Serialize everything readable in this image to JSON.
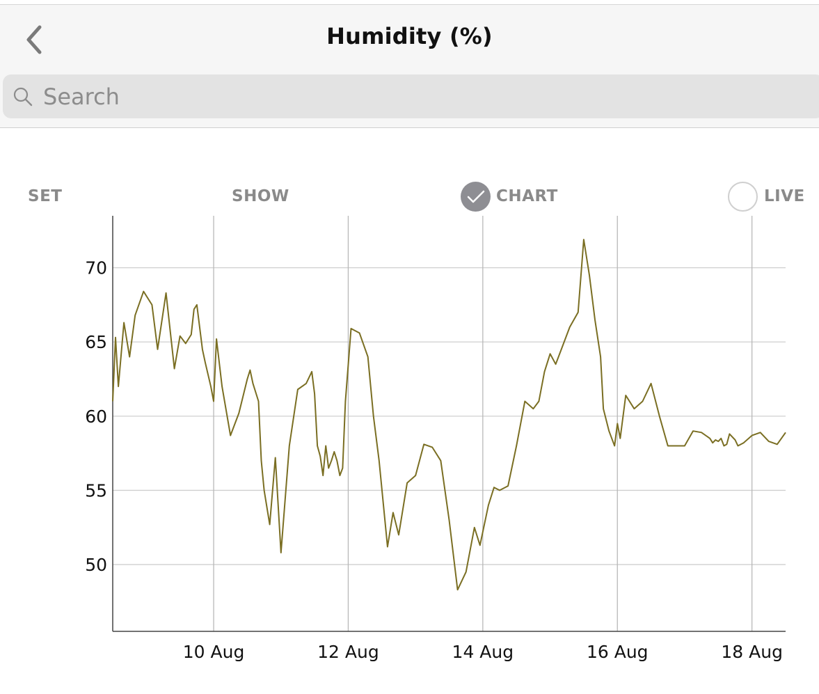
{
  "header": {
    "title": "Humidity (%)",
    "back_icon": "chevron-left-icon"
  },
  "search": {
    "placeholder": "Search",
    "value": "",
    "icon": "search-icon"
  },
  "toolbar": {
    "set_label": "SET",
    "show_label": "SHOW",
    "chart_label": "CHART",
    "chart_checked": true,
    "live_label": "LIVE",
    "live_checked": false
  },
  "colors": {
    "line": "#7a6e22",
    "grid": "#cfcfcf",
    "toggle_on": "#8e8e93"
  },
  "chart_data": {
    "type": "line",
    "x_type": "date",
    "xlim": [
      "2023-08-08T12:00",
      "2023-08-18T12:00"
    ],
    "ylim": [
      45.5,
      73.5
    ],
    "y_ticks": [
      50,
      55,
      60,
      65,
      70
    ],
    "x_ticks": [
      {
        "date": "2023-08-10",
        "label": "10 Aug"
      },
      {
        "date": "2023-08-12",
        "label": "12 Aug"
      },
      {
        "date": "2023-08-14",
        "label": "14 Aug"
      },
      {
        "date": "2023-08-16",
        "label": "16 Aug"
      },
      {
        "date": "2023-08-18",
        "label": "18 Aug"
      }
    ],
    "grid": true,
    "series": [
      {
        "x": [
          "2023-08-08T12:00",
          "2023-08-08T13:00",
          "2023-08-08T14:00",
          "2023-08-08T16:00",
          "2023-08-08T18:00",
          "2023-08-08T20:00",
          "2023-08-08T23:00",
          "2023-08-09T02:00",
          "2023-08-09T04:00",
          "2023-08-09T07:00",
          "2023-08-09T10:00",
          "2023-08-09T12:00",
          "2023-08-09T14:00",
          "2023-08-09T16:00",
          "2023-08-09T17:00",
          "2023-08-09T18:00",
          "2023-08-09T19:00",
          "2023-08-09T20:00",
          "2023-08-09T21:00",
          "2023-08-09T23:00",
          "2023-08-10T00:00",
          "2023-08-10T01:00",
          "2023-08-10T03:00",
          "2023-08-10T06:00",
          "2023-08-10T09:00",
          "2023-08-10T12:00",
          "2023-08-10T13:00",
          "2023-08-10T14:00",
          "2023-08-10T16:00",
          "2023-08-10T17:00",
          "2023-08-10T18:00",
          "2023-08-10T20:00",
          "2023-08-10T22:00",
          "2023-08-11T00:00",
          "2023-08-11T03:00",
          "2023-08-11T06:00",
          "2023-08-11T09:00",
          "2023-08-11T11:00",
          "2023-08-11T12:00",
          "2023-08-11T13:00",
          "2023-08-11T14:00",
          "2023-08-11T15:00",
          "2023-08-11T16:00",
          "2023-08-11T17:00",
          "2023-08-11T18:00",
          "2023-08-11T19:00",
          "2023-08-11T20:00",
          "2023-08-11T21:00",
          "2023-08-11T22:00",
          "2023-08-11T23:00",
          "2023-08-12T01:00",
          "2023-08-12T04:00",
          "2023-08-12T07:00",
          "2023-08-12T09:00",
          "2023-08-12T11:00",
          "2023-08-12T14:00",
          "2023-08-12T16:00",
          "2023-08-12T18:00",
          "2023-08-12T21:00",
          "2023-08-13T00:00",
          "2023-08-13T03:00",
          "2023-08-13T06:00",
          "2023-08-13T09:00",
          "2023-08-13T12:00",
          "2023-08-13T15:00",
          "2023-08-13T18:00",
          "2023-08-13T21:00",
          "2023-08-13T23:00",
          "2023-08-14T02:00",
          "2023-08-14T04:00",
          "2023-08-14T06:00",
          "2023-08-14T09:00",
          "2023-08-14T12:00",
          "2023-08-14T15:00",
          "2023-08-14T18:00",
          "2023-08-14T20:00",
          "2023-08-14T22:00",
          "2023-08-15T00:00",
          "2023-08-15T02:00",
          "2023-08-15T04:00",
          "2023-08-15T07:00",
          "2023-08-15T10:00",
          "2023-08-15T12:00",
          "2023-08-15T14:00",
          "2023-08-15T15:00",
          "2023-08-15T16:00",
          "2023-08-15T18:00",
          "2023-08-15T19:00",
          "2023-08-15T21:00",
          "2023-08-15T23:00",
          "2023-08-16T00:00",
          "2023-08-16T01:00",
          "2023-08-16T03:00",
          "2023-08-16T06:00",
          "2023-08-16T09:00",
          "2023-08-16T12:00",
          "2023-08-16T15:00",
          "2023-08-16T18:00",
          "2023-08-16T21:00",
          "2023-08-17T00:00",
          "2023-08-17T03:00",
          "2023-08-17T06:00",
          "2023-08-17T09:00",
          "2023-08-17T10:00",
          "2023-08-17T11:00",
          "2023-08-17T12:00",
          "2023-08-17T13:00",
          "2023-08-17T14:00",
          "2023-08-17T15:00",
          "2023-08-17T16:00",
          "2023-08-17T17:00",
          "2023-08-17T18:00",
          "2023-08-17T19:00",
          "2023-08-17T21:00",
          "2023-08-18T00:00",
          "2023-08-18T03:00",
          "2023-08-18T06:00",
          "2023-08-18T09:00",
          "2023-08-18T12:00"
        ],
        "values": [
          61.0,
          65.3,
          62.0,
          66.3,
          64.0,
          66.8,
          68.4,
          67.5,
          64.5,
          68.3,
          63.2,
          65.4,
          64.9,
          65.5,
          67.2,
          67.5,
          66.0,
          64.5,
          63.6,
          62.0,
          61.0,
          65.2,
          62.0,
          58.7,
          60.2,
          62.5,
          63.1,
          62.2,
          61.0,
          57.0,
          55.0,
          52.7,
          57.2,
          50.8,
          58.0,
          61.8,
          62.2,
          63.0,
          61.5,
          58.0,
          57.3,
          56.0,
          58.0,
          56.5,
          57.0,
          57.6,
          57.0,
          56.0,
          56.5,
          61.0,
          65.9,
          65.6,
          64.0,
          60.0,
          57.0,
          51.2,
          53.5,
          52.0,
          55.5,
          56.0,
          58.1,
          57.9,
          57.0,
          53.0,
          48.3,
          49.5,
          52.5,
          51.3,
          54.0,
          55.2,
          55.0,
          55.3,
          58.0,
          61.0,
          60.5,
          61.0,
          63.0,
          64.2,
          63.5,
          64.5,
          66.0,
          67.0,
          71.9,
          69.5,
          68.0,
          66.5,
          64.0,
          60.5,
          59.0,
          58.0,
          59.5,
          58.5,
          61.4,
          60.5,
          61.0,
          62.2,
          60.0,
          58.0,
          58.0,
          58.0,
          59.0,
          58.9,
          58.5,
          58.2,
          58.4,
          58.3,
          58.5,
          58.0,
          58.1,
          58.8,
          58.6,
          58.4,
          58.0,
          58.2,
          58.7,
          58.9,
          58.3,
          58.1,
          58.9
        ]
      }
    ]
  }
}
